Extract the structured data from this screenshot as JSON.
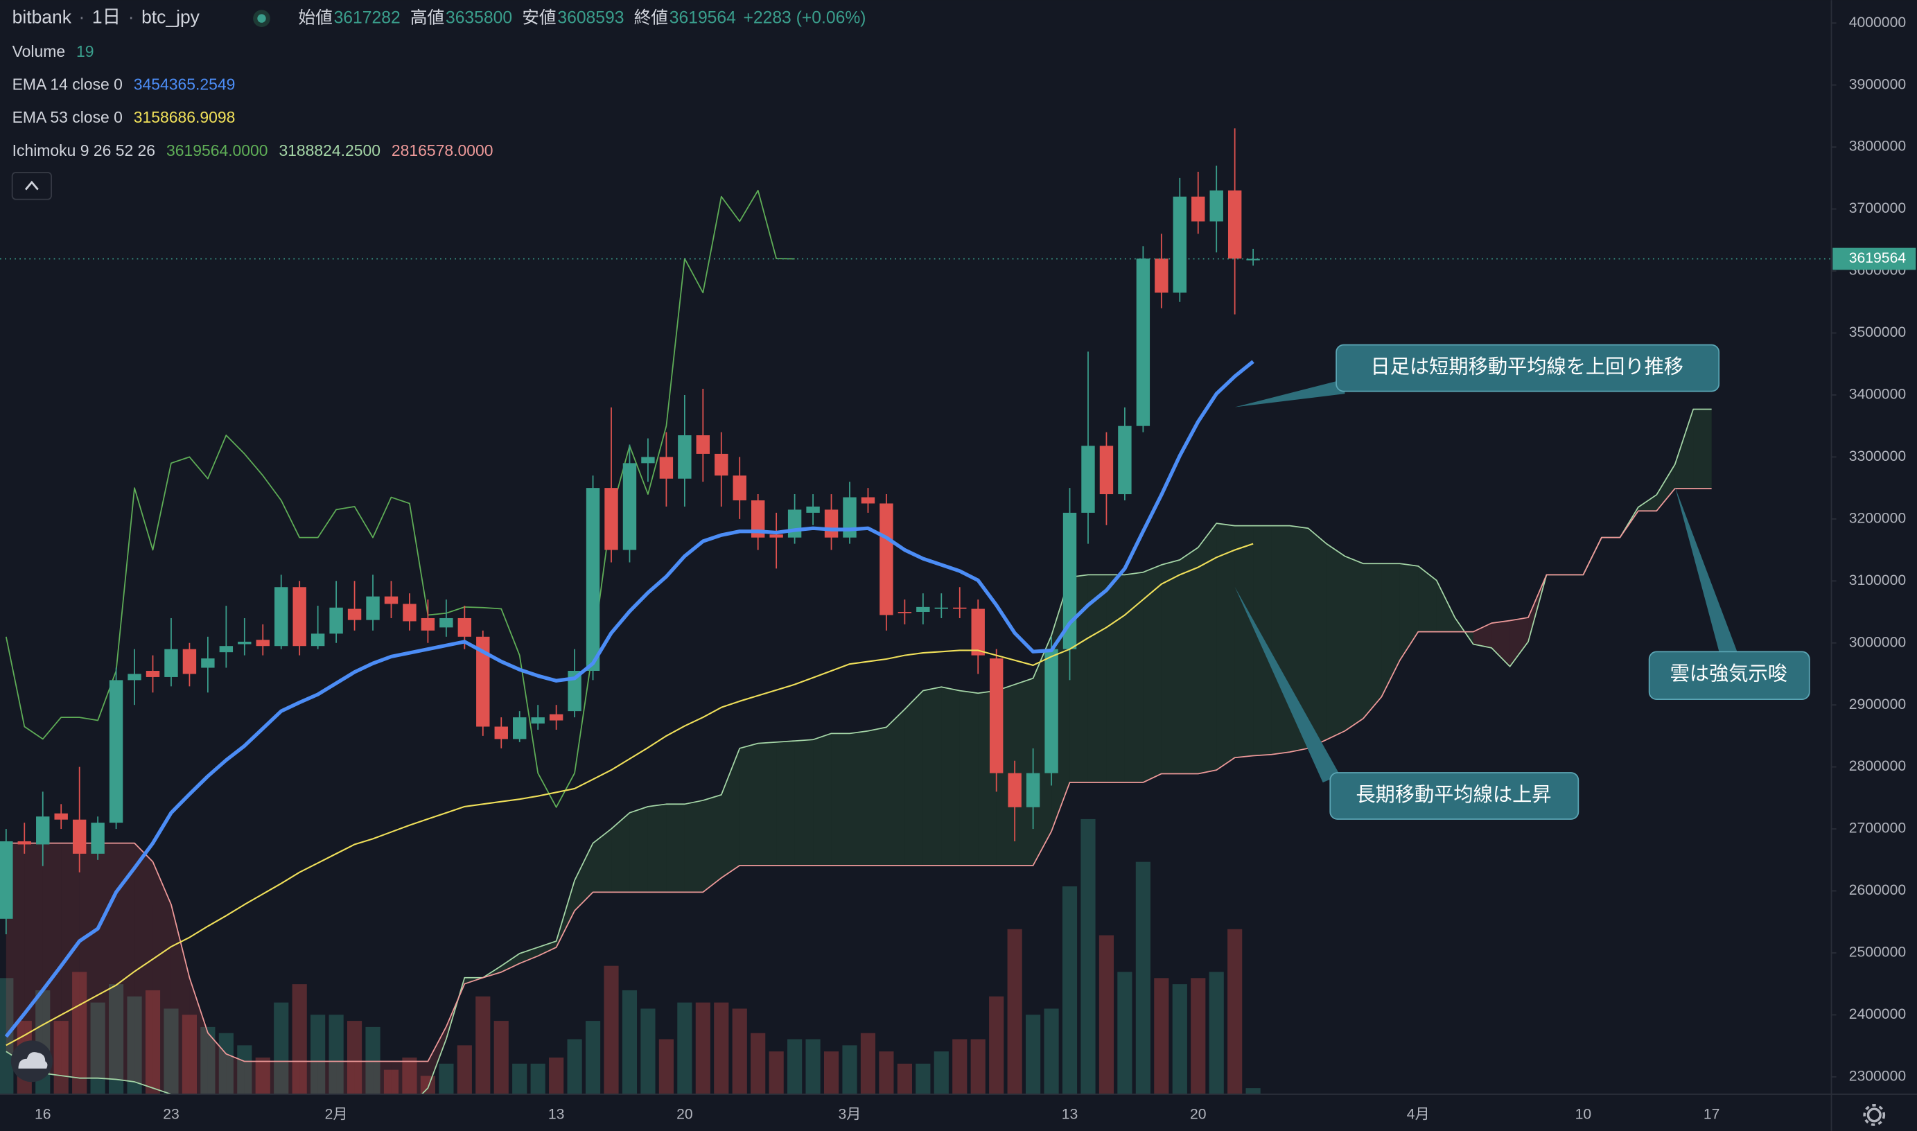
{
  "chart_data": {
    "type": "candlestick",
    "symbol": "bitbank",
    "interval": "1日",
    "pair": "btc_jpy",
    "ohlc_labels": [
      "始値",
      "高値",
      "安値",
      "終値"
    ],
    "ohlc_values": [
      "3617282",
      "3635800",
      "3608593",
      "3619564"
    ],
    "change": "+2283 (+0.06%)",
    "indicators": [
      {
        "name": "Volume",
        "values": [
          "19"
        ],
        "value_colors": [
          "#3a9e8c"
        ]
      },
      {
        "name": "EMA 14 close 0",
        "values": [
          "3454365.2549"
        ],
        "value_colors": [
          "#4c8df6"
        ]
      },
      {
        "name": "EMA 53 close 0",
        "values": [
          "3158686.9098"
        ],
        "value_colors": [
          "#f0e05a"
        ]
      },
      {
        "name": "Ichimoku 9 26 52 26",
        "values": [
          "3619564.0000",
          "3188824.2500",
          "2816578.0000"
        ],
        "value_colors": [
          "#5fae57",
          "#a5d6a7",
          "#ef9a9a"
        ]
      }
    ],
    "categories": [
      null,
      null,
      "16",
      null,
      null,
      null,
      null,
      null,
      null,
      "23",
      null,
      null,
      null,
      null,
      null,
      null,
      null,
      null,
      "2月",
      null,
      null,
      null,
      null,
      null,
      null,
      null,
      null,
      null,
      null,
      null,
      "13",
      null,
      null,
      null,
      null,
      null,
      null,
      "20",
      null,
      null,
      null,
      null,
      null,
      null,
      null,
      null,
      "3月",
      null,
      null,
      null,
      null,
      null,
      null,
      null,
      null,
      null,
      null,
      null,
      "13",
      null,
      null,
      null,
      null,
      null,
      null,
      "20",
      null,
      null,
      null,
      null,
      null,
      null,
      null,
      null,
      null,
      null,
      null,
      "4月",
      null,
      null,
      null,
      null,
      null,
      null,
      null,
      null,
      "10",
      null,
      null,
      null,
      null,
      null,
      null,
      "17",
      null,
      null,
      null,
      null,
      null,
      null
    ],
    "open": [
      2555000,
      2680000,
      2675000,
      2725000,
      2715000,
      2660000,
      2710000,
      2940000,
      2955000,
      2945000,
      2990000,
      2960000,
      2985000,
      2998000,
      3005000,
      2995000,
      3090000,
      2995000,
      3015000,
      3055000,
      3037000,
      3075000,
      3063000,
      3040000,
      3025000,
      3040000,
      3010000,
      2865000,
      2845000,
      2870000,
      2885000,
      2890000,
      2955000,
      3250000,
      3150000,
      3290000,
      3300000,
      3265000,
      3335000,
      3305000,
      3270000,
      3230000,
      3175000,
      3170000,
      3210000,
      3215000,
      3170000,
      3235000,
      3225000,
      3050000,
      3050000,
      3055000,
      3057000,
      3055000,
      2975000,
      2790000,
      2735000,
      2790000,
      2990000,
      3210000,
      3318000,
      3240000,
      3350000,
      3620000,
      3565000,
      3720000,
      3680000,
      3730000,
      3617282,
      null,
      null,
      null,
      null,
      null,
      null,
      null,
      null,
      null,
      null,
      null,
      null,
      null,
      null,
      null,
      null,
      null,
      null,
      null,
      null,
      null,
      null,
      null,
      null,
      null,
      null,
      null,
      null,
      null,
      null,
      null
    ],
    "high": [
      2700000,
      2710000,
      2760000,
      2740000,
      2800000,
      2720000,
      2960000,
      2990000,
      2980000,
      3040000,
      3000000,
      3010000,
      3060000,
      3040000,
      3030000,
      3110000,
      3100000,
      3060000,
      3100000,
      3100000,
      3110000,
      3100000,
      3080000,
      3070000,
      3070000,
      3060000,
      3020000,
      2880000,
      2890000,
      2900000,
      2900000,
      2990000,
      3270000,
      3380000,
      3320000,
      3330000,
      3340000,
      3400000,
      3410000,
      3340000,
      3300000,
      3240000,
      3210000,
      3240000,
      3240000,
      3240000,
      3260000,
      3250000,
      3240000,
      3070000,
      3080000,
      3080000,
      3090000,
      3070000,
      2990000,
      2810000,
      2830000,
      3010000,
      3250000,
      3470000,
      3340000,
      3380000,
      3640000,
      3660000,
      3750000,
      3760000,
      3770000,
      3830000,
      3635800,
      null,
      null,
      null,
      null,
      null,
      null,
      null,
      null,
      null,
      null,
      null,
      null,
      null,
      null,
      null,
      null,
      null,
      null,
      null,
      null,
      null,
      null,
      null,
      null,
      null,
      null,
      null,
      null,
      null,
      null,
      null
    ],
    "low": [
      2530000,
      2660000,
      2640000,
      2700000,
      2630000,
      2650000,
      2700000,
      2900000,
      2920000,
      2930000,
      2930000,
      2920000,
      2960000,
      2980000,
      2980000,
      2990000,
      2980000,
      2990000,
      3000000,
      3020000,
      3020000,
      3040000,
      3020000,
      3000000,
      3010000,
      2990000,
      2850000,
      2830000,
      2840000,
      2860000,
      2860000,
      2880000,
      2940000,
      3130000,
      3130000,
      3260000,
      3220000,
      3220000,
      3260000,
      3220000,
      3200000,
      3150000,
      3120000,
      3160000,
      3190000,
      3150000,
      3160000,
      3210000,
      3020000,
      3030000,
      3030000,
      3040000,
      3040000,
      2950000,
      2760000,
      2680000,
      2700000,
      2770000,
      2940000,
      3160000,
      3190000,
      3230000,
      3340000,
      3540000,
      3550000,
      3660000,
      3630000,
      3530000,
      3608593,
      null,
      null,
      null,
      null,
      null,
      null,
      null,
      null,
      null,
      null,
      null,
      null,
      null,
      null,
      null,
      null,
      null,
      null,
      null,
      null,
      null,
      null,
      null,
      null,
      null,
      null,
      null,
      null,
      null,
      null,
      null
    ],
    "close": [
      2680000,
      2675000,
      2720000,
      2715000,
      2660000,
      2710000,
      2940000,
      2950000,
      2945000,
      2990000,
      2950000,
      2975000,
      2995000,
      3002000,
      2995000,
      3090000,
      2995000,
      3015000,
      3057000,
      3037000,
      3075000,
      3063000,
      3035000,
      3020000,
      3040000,
      3010000,
      2865000,
      2845000,
      2880000,
      2880000,
      2875000,
      2955000,
      3250000,
      3150000,
      3290000,
      3300000,
      3265000,
      3335000,
      3305000,
      3270000,
      3230000,
      3170000,
      3170000,
      3215000,
      3220000,
      3170000,
      3235000,
      3225000,
      3045000,
      3048000,
      3058000,
      3057000,
      3055000,
      2980000,
      2790000,
      2735000,
      2790000,
      2990000,
      3210000,
      3318000,
      3240000,
      3350000,
      3620000,
      3565000,
      3720000,
      3680000,
      3730000,
      3620000,
      3619564,
      null,
      null,
      null,
      null,
      null,
      null,
      null,
      null,
      null,
      null,
      null,
      null,
      null,
      null,
      null,
      null,
      null,
      null,
      null,
      null,
      null,
      null,
      null,
      null,
      null,
      null,
      null,
      null,
      null,
      null,
      null
    ],
    "volume": [
      361,
      228,
      323,
      228,
      380,
      285,
      342,
      304,
      323,
      266,
      247,
      209,
      190,
      152,
      114,
      285,
      342,
      247,
      247,
      228,
      209,
      76,
      114,
      57,
      95,
      152,
      304,
      228,
      95,
      95,
      114,
      171,
      228,
      399,
      323,
      266,
      171,
      285,
      285,
      285,
      266,
      190,
      133,
      171,
      171,
      133,
      152,
      190,
      133,
      95,
      95,
      133,
      171,
      171,
      304,
      513,
      247,
      266,
      646,
      855,
      494,
      380,
      722,
      361,
      342,
      361,
      380,
      513,
      19,
      null,
      null,
      null,
      null,
      null,
      null,
      null,
      null,
      null,
      null,
      null,
      null,
      null,
      null,
      null,
      null,
      null,
      null,
      null,
      null,
      null,
      null,
      null,
      null,
      null,
      null,
      null,
      null,
      null,
      null,
      null
    ],
    "ema": [
      {
        "color": "#4c8df6",
        "width": 3,
        "values": [
          2365000,
          2402000,
          2440000,
          2479000,
          2519000,
          2539000,
          2598000,
          2637000,
          2677000,
          2726000,
          2756000,
          2785000,
          2811000,
          2834000,
          2862000,
          2890000,
          2904000,
          2917000,
          2935000,
          2953000,
          2967000,
          2978000,
          2984000,
          2990000,
          2996000,
          3002000,
          2986000,
          2970000,
          2957000,
          2947000,
          2939000,
          2943000,
          2967000,
          3016000,
          3051000,
          3081000,
          3107000,
          3140000,
          3164000,
          3174000,
          3180000,
          3180000,
          3178000,
          3182000,
          3185000,
          3183000,
          3183000,
          3185000,
          3170000,
          3150000,
          3136000,
          3126000,
          3116000,
          3101000,
          3061000,
          3016000,
          2986000,
          2988000,
          3032000,
          3061000,
          3085000,
          3120000,
          3180000,
          3239000,
          3302000,
          3357000,
          3402000,
          3430000,
          3454000,
          null,
          null,
          null,
          null,
          null,
          null,
          null,
          null,
          null,
          null,
          null,
          null,
          null,
          null,
          null,
          null,
          null,
          null,
          null,
          null,
          null,
          null,
          null,
          null,
          null,
          null,
          null,
          null,
          null,
          null,
          null
        ]
      },
      {
        "color": "#f0e05a",
        "width": 1.2,
        "values": [
          2351000,
          2367000,
          2384000,
          2400000,
          2416000,
          2432000,
          2448000,
          2470000,
          2490000,
          2510000,
          2525000,
          2543000,
          2560000,
          2578000,
          2595000,
          2612000,
          2630000,
          2645000,
          2660000,
          2675000,
          2684000,
          2695000,
          2706000,
          2716000,
          2726000,
          2736000,
          2740000,
          2744000,
          2748000,
          2753000,
          2759000,
          2765000,
          2780000,
          2795000,
          2813000,
          2831000,
          2850000,
          2866000,
          2880000,
          2896000,
          2906000,
          2915000,
          2924000,
          2933000,
          2944000,
          2955000,
          2966000,
          2970000,
          2974000,
          2980000,
          2984000,
          2986000,
          2988000,
          2988000,
          2980000,
          2972000,
          2964000,
          2978000,
          2990000,
          3008000,
          3025000,
          3045000,
          3070000,
          3095000,
          3110000,
          3122000,
          3138000,
          3150000,
          3160000,
          null,
          null,
          null,
          null,
          null,
          null,
          null,
          null,
          null,
          null,
          null,
          null,
          null,
          null,
          null,
          null,
          null,
          null,
          null,
          null,
          null,
          null,
          null,
          null,
          null,
          null,
          null,
          null,
          null,
          null,
          null
        ]
      }
    ],
    "ichimoku": {
      "lagging": [
        3010000,
        2865000,
        2845000,
        2880000,
        2880000,
        2875000,
        2955000,
        3250000,
        3150000,
        3290000,
        3300000,
        3265000,
        3335000,
        3305000,
        3270000,
        3230000,
        3170000,
        3170000,
        3215000,
        3220000,
        3170000,
        3235000,
        3225000,
        3045000,
        3048000,
        3058000,
        3057000,
        3055000,
        2980000,
        2790000,
        2735000,
        2790000,
        2990000,
        3210000,
        3318000,
        3240000,
        3350000,
        3620000,
        3565000,
        3720000,
        3680000,
        3730000,
        3620000,
        3619564,
        null,
        null,
        null,
        null,
        null,
        null,
        null,
        null,
        null,
        null,
        null,
        null,
        null,
        null,
        null,
        null,
        null,
        null,
        null,
        null,
        null,
        null,
        null,
        null,
        null,
        null,
        null,
        null,
        null,
        null,
        null,
        null,
        null,
        null,
        null,
        null,
        null,
        null,
        null,
        null,
        null,
        null,
        null,
        null,
        null,
        null,
        null,
        null,
        null,
        null,
        null,
        null,
        null,
        null,
        null,
        null
      ],
      "span_a": [
        2341000,
        2322000,
        2306000,
        2302000,
        2298000,
        2298000,
        2296000,
        2292000,
        2282000,
        2272000,
        2262000,
        2252000,
        2252000,
        2252000,
        2252000,
        2252000,
        2252000,
        2252000,
        2252000,
        2252000,
        2252000,
        2252000,
        2252000,
        2282000,
        2361000,
        2460000,
        2460000,
        2479000,
        2499000,
        2509000,
        2519000,
        2617000,
        2677000,
        2700000,
        2726000,
        2736000,
        2740000,
        2740000,
        2746000,
        2755000,
        2830000,
        2838000,
        2840000,
        2842000,
        2844000,
        2854000,
        2854000,
        2858000,
        2864000,
        2893000,
        2923000,
        2929000,
        2923000,
        2919000,
        2923000,
        2933000,
        2943000,
        3012000,
        3106000,
        3110000,
        3110000,
        3110000,
        3114000,
        3126000,
        3134000,
        3154000,
        3193000,
        3189000,
        3189000,
        3189000,
        3189000,
        3185000,
        3160000,
        3140000,
        3128000,
        3128000,
        3128000,
        3124000,
        3101000,
        3041000,
        2998000,
        2992000,
        2962000,
        3002000,
        3110000,
        3110000,
        3110000,
        3170000,
        3170000,
        3219000,
        3239000,
        3288000,
        3377000,
        3377000,
        null,
        null,
        null,
        null,
        null,
        null
      ],
      "span_b": [
        2677000,
        2677000,
        2677000,
        2677000,
        2677000,
        2677000,
        2677000,
        2677000,
        2647000,
        2578000,
        2460000,
        2371000,
        2337000,
        2325000,
        2325000,
        2325000,
        2325000,
        2325000,
        2325000,
        2325000,
        2325000,
        2325000,
        2325000,
        2325000,
        2381000,
        2450000,
        2460000,
        2469000,
        2483000,
        2495000,
        2509000,
        2568000,
        2598000,
        2598000,
        2598000,
        2598000,
        2598000,
        2598000,
        2598000,
        2621000,
        2641000,
        2641000,
        2641000,
        2641000,
        2641000,
        2641000,
        2641000,
        2641000,
        2641000,
        2641000,
        2641000,
        2641000,
        2641000,
        2641000,
        2641000,
        2641000,
        2641000,
        2696000,
        2775000,
        2775000,
        2775000,
        2775000,
        2775000,
        2789000,
        2789000,
        2789000,
        2795000,
        2815000,
        2818000,
        2820000,
        2824000,
        2830000,
        2844000,
        2858000,
        2878000,
        2913000,
        2972000,
        3018000,
        3018000,
        3018000,
        3018000,
        3032000,
        3036000,
        3041000,
        3110000,
        3110000,
        3110000,
        3170000,
        3170000,
        3213000,
        3213000,
        3249000,
        3249000,
        3249000,
        null,
        null,
        null,
        null,
        null,
        null
      ],
      "lagging_color": "#5fae57",
      "span_a_color": "#a5d6a7",
      "span_b_color": "#ef9a9a",
      "cloud_up_color": "rgba(76,175,80,0.14)",
      "cloud_down_color": "rgba(239,83,80,0.16)"
    },
    "candle_colors": {
      "up": "#3a9e8c",
      "down": "#e0524f"
    },
    "volume_colors": {
      "up": "rgba(58,158,140,0.32)",
      "down": "rgba(224,82,79,0.32)"
    },
    "ylim": [
      2272000,
      4037000
    ],
    "yticks": [
      2300000,
      2400000,
      2500000,
      2600000,
      2700000,
      2800000,
      2900000,
      3000000,
      3100000,
      3200000,
      3300000,
      3400000,
      3500000,
      3600000,
      3700000,
      3800000,
      3900000,
      4000000
    ],
    "volume_lim": [
      0,
      3400
    ],
    "grid": false,
    "annotations": [
      "日足は短期移動平均線を上回り推移",
      "長期移動平均線は上昇",
      "雲は強気示唆"
    ]
  }
}
